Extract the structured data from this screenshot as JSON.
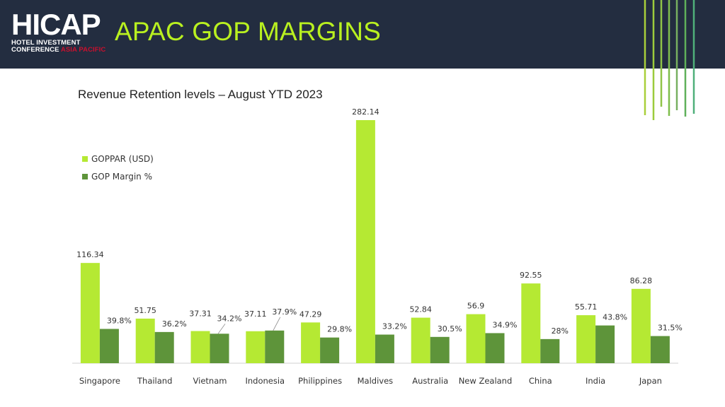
{
  "header": {
    "logo_text": "HICAP",
    "logo_line1": "HOTEL INVESTMENT",
    "logo_line2": "CONFERENCE",
    "logo_accent": "ASIA PACIFIC",
    "title": "APAC GOP MARGINS"
  },
  "colors": {
    "header_bg": "#232d40",
    "title": "#b9f020",
    "goppar": "#b5e933",
    "margin": "#5e943a"
  },
  "chart_data": {
    "type": "bar",
    "title": "Revenue Retention levels – August YTD 2023",
    "xlabel": "",
    "ylabel": "",
    "ylim": [
      0,
      290
    ],
    "grid": false,
    "legend_position": "top-left",
    "categories": [
      "Singapore",
      "Thailand",
      "Vietnam",
      "Indonesia",
      "Philippines",
      "Maldives",
      "Australia",
      "New Zealand",
      "China",
      "India",
      "Japan"
    ],
    "series": [
      {
        "name": "GOPPAR (USD)",
        "values": [
          116.34,
          51.75,
          37.31,
          37.11,
          47.29,
          282.14,
          52.84,
          56.9,
          92.55,
          55.71,
          86.28
        ],
        "labels": [
          "116.34",
          "51.75",
          "37.31",
          "37.11",
          "47.29",
          "282.14",
          "52.84",
          "56.9",
          "92.55",
          "55.71",
          "86.28"
        ]
      },
      {
        "name": "GOP Margin %",
        "values": [
          39.8,
          36.2,
          34.2,
          37.9,
          29.8,
          33.2,
          30.5,
          34.9,
          28,
          43.8,
          31.5
        ],
        "labels": [
          "39.8%",
          "36.2%",
          "34.2%",
          "37.9%",
          "29.8%",
          "33.2%",
          "30.5%",
          "34.9%",
          "28%",
          "43.8%",
          "31.5%"
        ]
      }
    ]
  }
}
